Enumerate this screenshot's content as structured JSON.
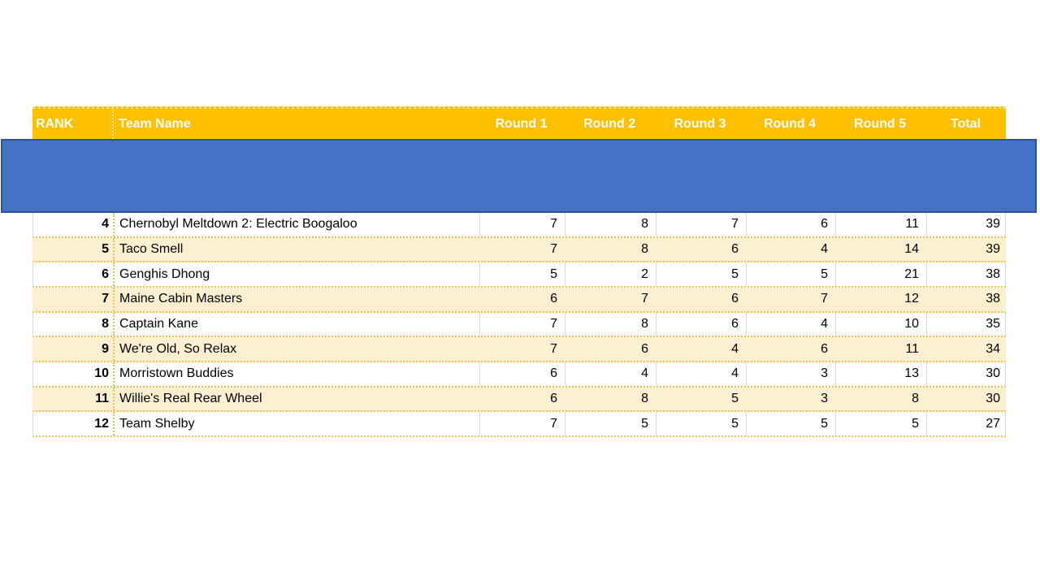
{
  "colors": {
    "header_fill": "#FFC000",
    "header_text": "#FFFFFF",
    "band_fill": "#FCF0D0",
    "grid_gray": "#D9D9D9",
    "grid_gold": "#F2C24E",
    "overlay_fill": "#4472C4",
    "overlay_border": "#2F5597"
  },
  "table": {
    "columns": [
      {
        "key": "rank",
        "label": "RANK"
      },
      {
        "key": "team",
        "label": "Team Name"
      },
      {
        "key": "r1",
        "label": "Round 1"
      },
      {
        "key": "r2",
        "label": "Round 2"
      },
      {
        "key": "r3",
        "label": "Round 3"
      },
      {
        "key": "r4",
        "label": "Round 4"
      },
      {
        "key": "r5",
        "label": "Round 5"
      },
      {
        "key": "total",
        "label": "Total"
      }
    ],
    "rows": [
      {
        "rank": "4",
        "team": "Chernobyl Meltdown 2: Electric Boogaloo",
        "r1": "7",
        "r2": "8",
        "r3": "7",
        "r4": "6",
        "r5": "11",
        "total": "39"
      },
      {
        "rank": "5",
        "team": "Taco Smell",
        "r1": "7",
        "r2": "8",
        "r3": "6",
        "r4": "4",
        "r5": "14",
        "total": "39"
      },
      {
        "rank": "6",
        "team": "Genghis Dhong",
        "r1": "5",
        "r2": "2",
        "r3": "5",
        "r4": "5",
        "r5": "21",
        "total": "38"
      },
      {
        "rank": "7",
        "team": "Maine Cabin Masters",
        "r1": "6",
        "r2": "7",
        "r3": "6",
        "r4": "7",
        "r5": "12",
        "total": "38"
      },
      {
        "rank": "8",
        "team": "Captain Kane",
        "r1": "7",
        "r2": "8",
        "r3": "6",
        "r4": "4",
        "r5": "10",
        "total": "35"
      },
      {
        "rank": "9",
        "team": "We're Old, So Relax",
        "r1": "7",
        "r2": "6",
        "r3": "4",
        "r4": "6",
        "r5": "11",
        "total": "34"
      },
      {
        "rank": "10",
        "team": "Morristown Buddies",
        "r1": "6",
        "r2": "4",
        "r3": "4",
        "r4": "3",
        "r5": "13",
        "total": "30"
      },
      {
        "rank": "11",
        "team": "Willie's Real Rear Wheel",
        "r1": "6",
        "r2": "8",
        "r3": "5",
        "r4": "3",
        "r5": "8",
        "total": "30"
      },
      {
        "rank": "12",
        "team": "Team Shelby",
        "r1": "7",
        "r2": "5",
        "r3": "5",
        "r4": "5",
        "r5": "5",
        "total": "27"
      }
    ]
  },
  "overlay": {
    "description": "blue-rectangle-shape-covering-ranks-1-to-3"
  }
}
